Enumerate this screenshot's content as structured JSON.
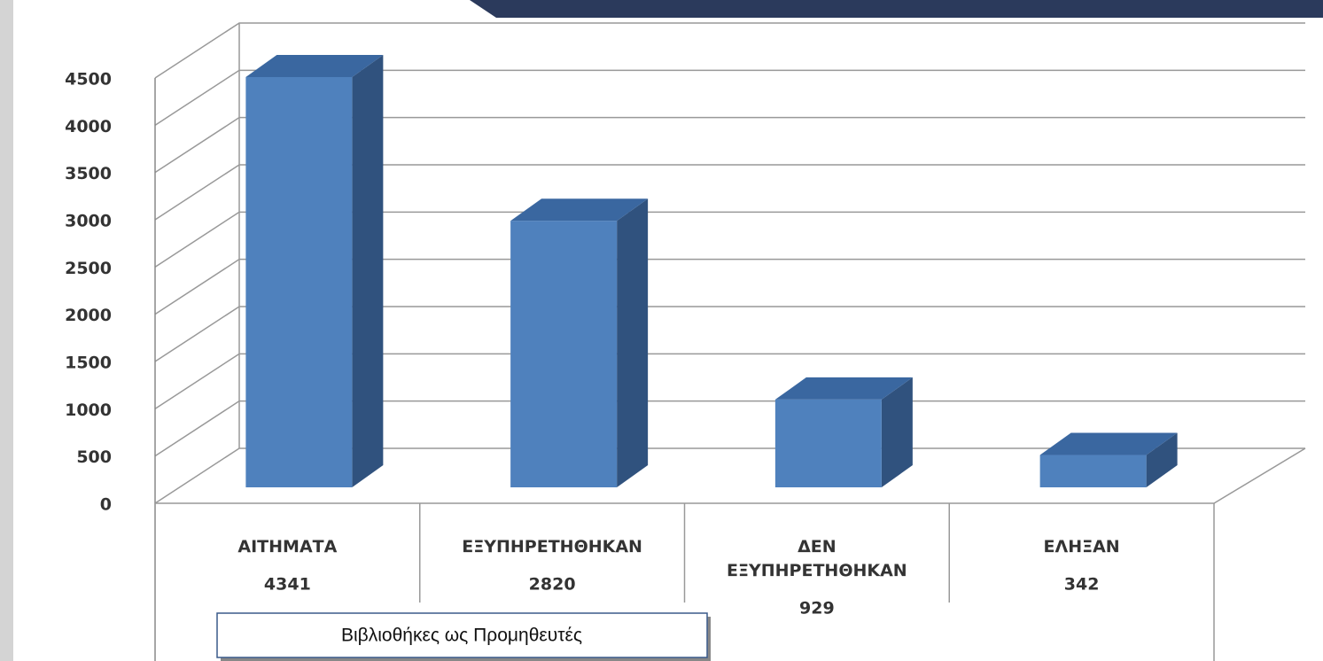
{
  "chart_data": {
    "type": "bar3d",
    "categories": [
      "ΑΙΤΗΜΑΤΑ",
      "ΕΞΥΠΗΡΕΤΗΘΗΚΑΝ",
      "ΔΕΝ ΕΞΥΠΗΡΕΤΗΘΗΚΑΝ",
      "ΕΛΗΞΑΝ"
    ],
    "values": [
      4341,
      2820,
      929,
      342
    ],
    "color": "#4f81bd",
    "ylim": [
      0,
      4500
    ],
    "yticks": [
      0,
      500,
      1000,
      1500,
      2000,
      2500,
      3000,
      3500,
      4000,
      4500
    ],
    "grid": true,
    "annotation": "Βιβλιοθήκες ως Προμηθευτές"
  }
}
